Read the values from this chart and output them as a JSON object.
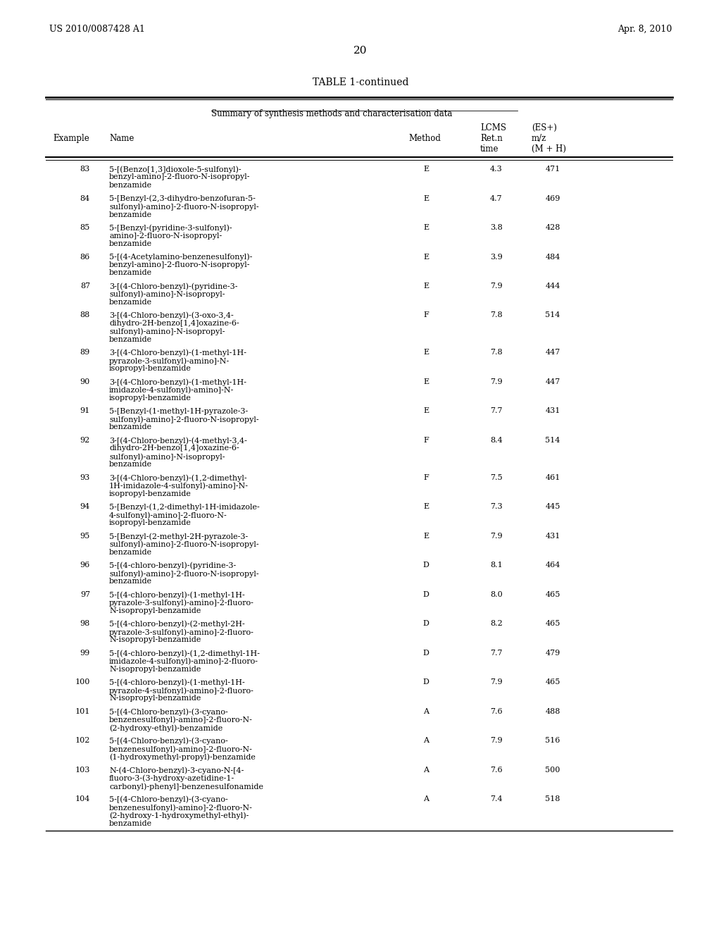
{
  "header_left": "US 2010/0087428 A1",
  "header_right": "Apr. 8, 2010",
  "page_number": "20",
  "table_title": "TABLE 1-continued",
  "table_subtitle": "Summary of synthesis methods and characterisation data",
  "col_headers": [
    "Example",
    "Name",
    "Method",
    "LCMS\nRet.n\ntime",
    "(ES+)\nm/z\n(M + H)"
  ],
  "rows": [
    [
      "83",
      "5-[(Benzo[1,3]dioxole-5-sulfonyl)-\nbenzyl-amino]-2-fluoro-N-isopropyl-\nbenzamide",
      "E",
      "4.3",
      "471"
    ],
    [
      "84",
      "5-[Benzyl-(2,3-dihydro-benzofuran-5-\nsulfonyl)-amino]-2-fluoro-N-isopropyl-\nbenzamide",
      "E",
      "4.7",
      "469"
    ],
    [
      "85",
      "5-[Benzyl-(pyridine-3-sulfonyl)-\namino]-2-fluoro-N-isopropyl-\nbenzamide",
      "E",
      "3.8",
      "428"
    ],
    [
      "86",
      "5-[(4-Acetylamino-benzenesulfonyl)-\nbenzyl-amino]-2-fluoro-N-isopropyl-\nbenzamide",
      "E",
      "3.9",
      "484"
    ],
    [
      "87",
      "3-[(4-Chloro-benzyl)-(pyridine-3-\nsulfonyl)-amino]-N-isopropyl-\nbenzamide",
      "E",
      "7.9",
      "444"
    ],
    [
      "88",
      "3-[(4-Chloro-benzyl)-(3-oxo-3,4-\ndihydro-2H-benzo[1,4]oxazine-6-\nsulfonyl)-amino]-N-isopropyl-\nbenzamide",
      "F",
      "7.8",
      "514"
    ],
    [
      "89",
      "3-[(4-Chloro-benzyl)-(1-methyl-1H-\npyrazole-3-sulfonyl)-amino]-N-\nisopropyl-benzamide",
      "E",
      "7.8",
      "447"
    ],
    [
      "90",
      "3-[(4-Chloro-benzyl)-(1-methyl-1H-\nimidazole-4-sulfonyl)-amino]-N-\nisopropyl-benzamide",
      "E",
      "7.9",
      "447"
    ],
    [
      "91",
      "5-[Benzyl-(1-methyl-1H-pyrazole-3-\nsulfonyl)-amino]-2-fluoro-N-isopropyl-\nbenzamide",
      "E",
      "7.7",
      "431"
    ],
    [
      "92",
      "3-[(4-Chloro-benzyl)-(4-methyl-3,4-\ndihydro-2H-benzo[1,4]oxazine-6-\nsulfonyl)-amino]-N-isopropyl-\nbenzamide",
      "F",
      "8.4",
      "514"
    ],
    [
      "93",
      "3-[(4-Chloro-benzyl)-(1,2-dimethyl-\n1H-imidazole-4-sulfonyl)-amino]-N-\nisopropyl-benzamide",
      "F",
      "7.5",
      "461"
    ],
    [
      "94",
      "5-[Benzyl-(1,2-dimethyl-1H-imidazole-\n4-sulfonyl)-amino]-2-fluoro-N-\nisopropyl-benzamide",
      "E",
      "7.3",
      "445"
    ],
    [
      "95",
      "5-[Benzyl-(2-methyl-2H-pyrazole-3-\nsulfonyl)-amino]-2-fluoro-N-isopropyl-\nbenzamide",
      "E",
      "7.9",
      "431"
    ],
    [
      "96",
      "5-[(4-chloro-benzyl)-(pyridine-3-\nsulfonyl)-amino]-2-fluoro-N-isopropyl-\nbenzamide",
      "D",
      "8.1",
      "464"
    ],
    [
      "97",
      "5-[(4-chloro-benzyl)-(1-methyl-1H-\npyrazole-3-sulfonyl)-amino]-2-fluoro-\nN-isopropyl-benzamide",
      "D",
      "8.0",
      "465"
    ],
    [
      "98",
      "5-[(4-chloro-benzyl)-(2-methyl-2H-\npyrazole-3-sulfonyl)-amino]-2-fluoro-\nN-isopropyl-benzamide",
      "D",
      "8.2",
      "465"
    ],
    [
      "99",
      "5-[(4-chloro-benzyl)-(1,2-dimethyl-1H-\nimidazole-4-sulfonyl)-amino]-2-fluoro-\nN-isopropyl-benzamide",
      "D",
      "7.7",
      "479"
    ],
    [
      "100",
      "5-[(4-chloro-benzyl)-(1-methyl-1H-\npyrazole-4-sulfonyl)-amino]-2-fluoro-\nN-isopropyl-benzamide",
      "D",
      "7.9",
      "465"
    ],
    [
      "101",
      "5-[(4-Chloro-benzyl)-(3-cyano-\nbenzenesulfonyl)-amino]-2-fluoro-N-\n(2-hydroxy-ethyl)-benzamide",
      "A",
      "7.6",
      "488"
    ],
    [
      "102",
      "5-[(4-Chloro-benzyl)-(3-cyano-\nbenzenesulfonyl)-amino]-2-fluoro-N-\n(1-hydroxymethyl-propyl)-benzamide",
      "A",
      "7.9",
      "516"
    ],
    [
      "103",
      "N-(4-Chloro-benzyl)-3-cyano-N-[4-\nfluoro-3-(3-hydroxy-azetidine-1-\ncarbonyl)-phenyl]-benzenesulfonamide",
      "A",
      "7.6",
      "500"
    ],
    [
      "104",
      "5-[(4-Chloro-benzyl)-(3-cyano-\nbenzenesulfonyl)-amino]-2-fluoro-N-\n(2-hydroxy-1-hydroxymethyl-ethyl)-\nbenzamide",
      "A",
      "7.4",
      "518"
    ]
  ]
}
